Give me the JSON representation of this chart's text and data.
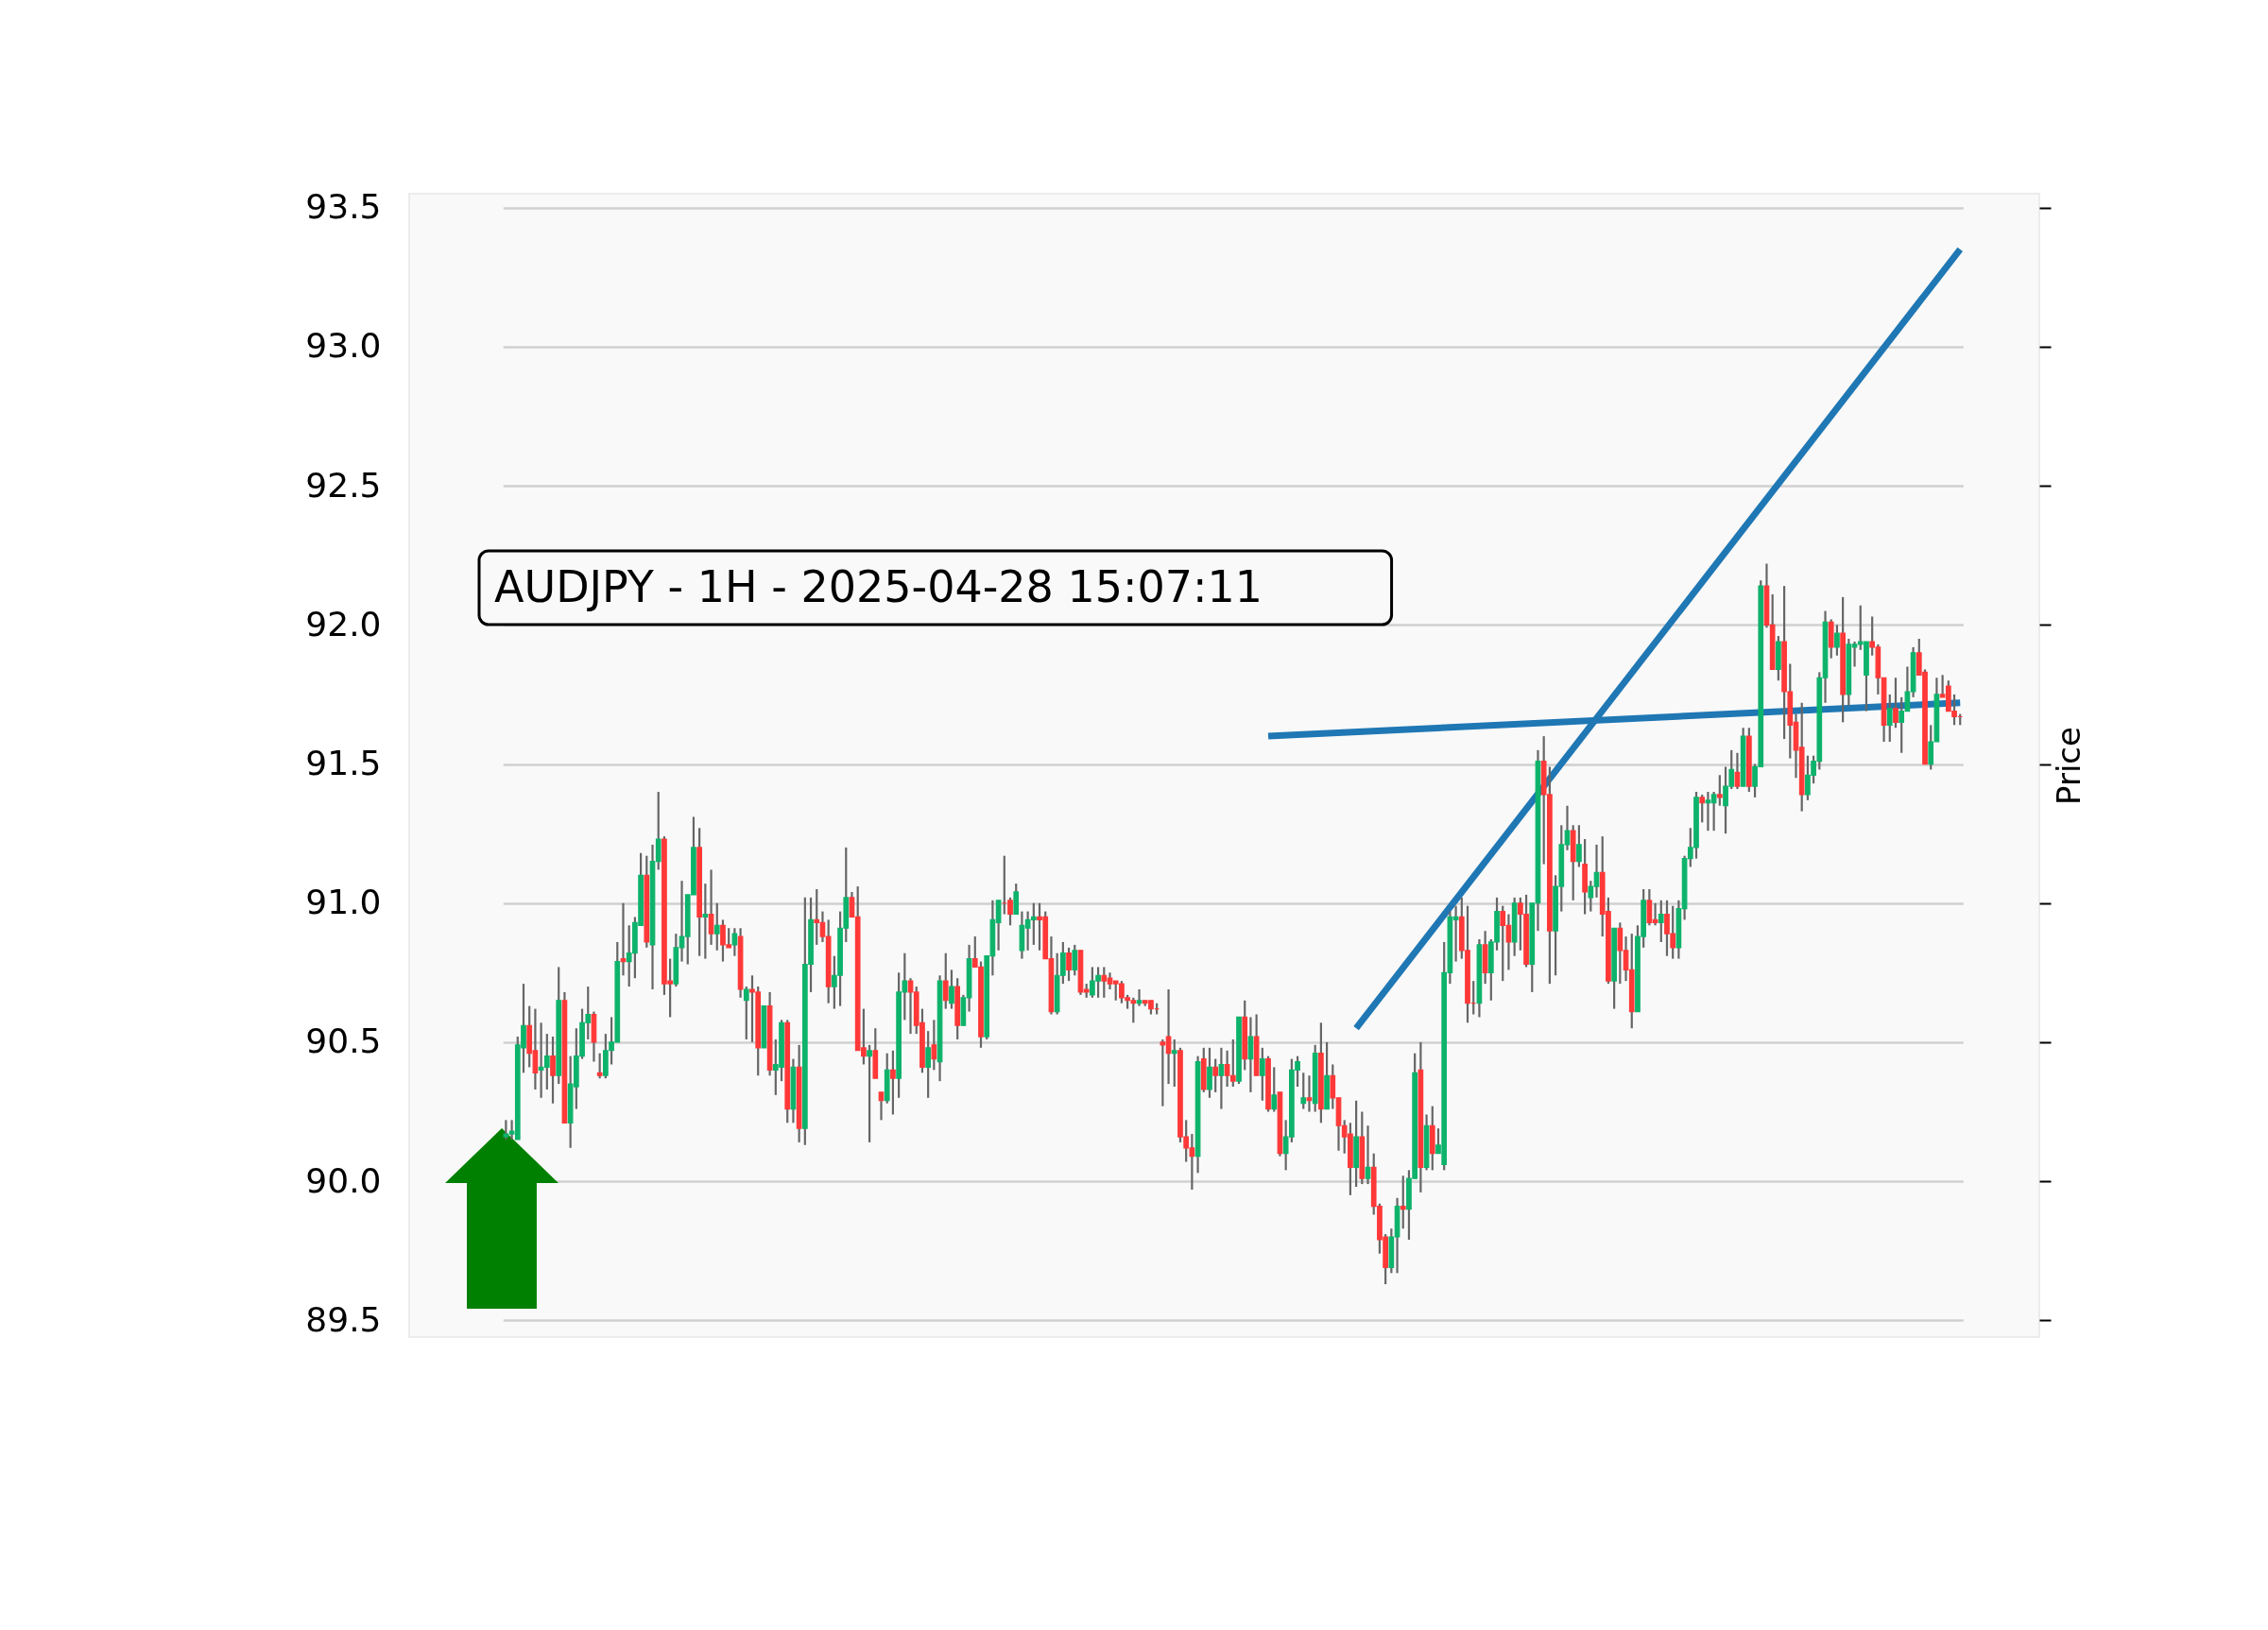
{
  "chart_data": {
    "type": "candlestick",
    "title": "AUDJPY - 1H - 2025-04-28 15:07:11",
    "ylabel": "Price",
    "ylim": [
      89.44,
      93.55
    ],
    "yticks": [
      89.5,
      {
        "value": 90,
        "label": "90.0"
      },
      90.5,
      {
        "value": 91,
        "label": "91.0"
      },
      91.5,
      {
        "value": 92,
        "label": "92.0"
      },
      92.5,
      {
        "value": 93,
        "label": "93.0"
      },
      93.5
    ],
    "grid": "y",
    "tick_labels": "y",
    "categories": [
      null,
      null,
      null,
      null,
      null,
      null,
      null,
      null,
      null,
      null,
      null,
      null,
      null,
      null,
      null,
      null,
      null,
      null,
      null,
      null,
      null,
      null,
      null,
      null,
      null,
      null,
      null,
      null,
      null,
      null,
      null,
      null,
      null,
      null,
      null,
      null,
      null,
      null,
      null,
      null,
      null,
      null,
      null,
      null,
      null,
      null,
      null,
      null,
      null,
      null,
      null,
      null,
      null,
      null,
      null,
      null,
      null,
      null,
      null,
      null,
      null,
      null,
      null,
      null,
      null,
      null,
      null,
      null,
      null,
      null,
      null,
      null,
      null,
      null,
      null,
      null,
      null,
      null,
      null,
      null,
      null,
      null,
      null,
      null,
      null,
      null,
      null,
      null,
      null,
      null,
      null,
      null,
      null,
      null,
      null,
      null,
      null,
      null,
      null,
      null,
      null,
      null,
      null,
      null,
      null,
      null,
      null,
      null,
      null,
      null,
      null,
      null,
      null,
      null,
      null,
      null,
      null,
      null,
      null,
      null,
      null,
      null,
      null,
      null,
      null,
      null,
      null,
      null,
      null,
      null,
      null,
      null,
      null,
      null,
      null,
      null,
      null,
      null,
      null,
      null,
      null,
      null,
      null,
      null,
      null,
      null,
      null,
      null,
      null,
      null,
      null,
      null,
      null,
      null,
      null,
      null,
      null,
      null,
      null,
      null,
      null,
      null,
      null,
      null,
      null,
      null,
      null,
      null,
      null,
      null,
      null,
      null,
      null,
      null,
      null,
      null,
      null,
      null,
      null,
      null,
      null,
      null,
      null,
      null,
      null,
      null,
      null,
      null,
      null,
      null,
      null,
      null,
      null,
      null,
      null,
      null,
      null,
      null,
      null,
      null,
      null,
      null,
      null,
      null,
      null,
      null,
      null,
      null,
      null,
      null,
      null,
      null,
      null,
      null,
      null,
      null,
      null,
      null,
      null,
      null,
      null,
      null,
      null,
      null,
      null,
      null,
      null,
      null,
      null,
      null,
      null,
      null,
      null,
      null,
      null,
      null,
      null,
      null,
      null,
      null,
      null,
      null,
      null,
      null,
      null,
      null,
      null,
      null,
      null
    ],
    "ohlc": [
      [
        90.16,
        90.22,
        90.15,
        90.17
      ],
      [
        90.17,
        90.22,
        90.15,
        90.18
      ],
      [
        90.15,
        90.52,
        90.15,
        90.49
      ],
      [
        90.48,
        90.71,
        90.39,
        90.56
      ],
      [
        90.56,
        90.63,
        90.41,
        90.46
      ],
      [
        90.47,
        90.62,
        90.33,
        90.39
      ],
      [
        90.4,
        90.57,
        90.3,
        90.41
      ],
      [
        90.41,
        90.53,
        90.33,
        90.45
      ],
      [
        90.45,
        90.52,
        90.28,
        90.38
      ],
      [
        90.38,
        90.77,
        90.35,
        90.65
      ],
      [
        90.65,
        90.68,
        90.21,
        90.21
      ],
      [
        90.21,
        90.45,
        90.12,
        90.35
      ],
      [
        90.34,
        90.55,
        90.26,
        90.45
      ],
      [
        90.45,
        90.62,
        90.44,
        90.57
      ],
      [
        90.57,
        90.7,
        90.51,
        90.6
      ],
      [
        90.6,
        90.61,
        90.43,
        90.5
      ],
      [
        90.39,
        90.46,
        90.37,
        90.38
      ],
      [
        90.38,
        90.53,
        90.37,
        90.47
      ],
      [
        90.47,
        90.59,
        90.42,
        90.5
      ],
      [
        90.5,
        90.86,
        90.5,
        90.79
      ],
      [
        90.8,
        91.0,
        90.74,
        90.79
      ],
      [
        90.79,
        90.92,
        90.7,
        90.82
      ],
      [
        90.82,
        90.95,
        90.73,
        90.93
      ],
      [
        90.92,
        91.18,
        90.92,
        91.1
      ],
      [
        91.1,
        91.17,
        90.84,
        90.86
      ],
      [
        90.85,
        91.21,
        90.69,
        91.15
      ],
      [
        91.15,
        91.4,
        91.12,
        91.23
      ],
      [
        91.23,
        91.24,
        90.67,
        90.71
      ],
      [
        90.72,
        90.8,
        90.59,
        90.71
      ],
      [
        90.71,
        90.89,
        90.7,
        90.84
      ],
      [
        90.84,
        91.08,
        90.79,
        90.88
      ],
      [
        90.88,
        91.03,
        90.78,
        91.03
      ],
      [
        91.03,
        91.31,
        91.03,
        91.2
      ],
      [
        91.2,
        91.27,
        90.81,
        90.95
      ],
      [
        90.95,
        91.07,
        90.8,
        90.96
      ],
      [
        90.96,
        91.12,
        90.85,
        90.89
      ],
      [
        90.89,
        91.0,
        90.83,
        90.92
      ],
      [
        90.92,
        90.94,
        90.79,
        90.85
      ],
      [
        90.85,
        90.91,
        90.84,
        90.84
      ],
      [
        90.85,
        90.91,
        90.81,
        90.89
      ],
      [
        90.88,
        90.91,
        90.66,
        90.69
      ],
      [
        90.65,
        90.7,
        90.51,
        90.69
      ],
      [
        90.69,
        90.74,
        90.5,
        90.68
      ],
      [
        90.68,
        90.7,
        90.38,
        90.48
      ],
      [
        90.48,
        90.63,
        90.48,
        90.63
      ],
      [
        90.63,
        90.68,
        90.38,
        90.4
      ],
      [
        90.4,
        90.51,
        90.31,
        90.42
      ],
      [
        90.41,
        90.58,
        90.36,
        90.57
      ],
      [
        90.57,
        90.58,
        90.21,
        90.26
      ],
      [
        90.26,
        90.44,
        90.21,
        90.41
      ],
      [
        90.41,
        90.49,
        90.14,
        90.19
      ],
      [
        90.19,
        91.02,
        90.13,
        90.78
      ],
      [
        90.78,
        91.02,
        90.68,
        90.94
      ],
      [
        90.94,
        91.05,
        90.85,
        90.93
      ],
      [
        90.93,
        90.97,
        90.86,
        90.88
      ],
      [
        90.88,
        90.94,
        90.64,
        90.7
      ],
      [
        90.7,
        90.81,
        90.62,
        90.74
      ],
      [
        90.74,
        90.97,
        90.63,
        90.91
      ],
      [
        90.91,
        91.2,
        90.86,
        91.02
      ],
      [
        91.02,
        91.04,
        90.95,
        90.95
      ],
      [
        90.95,
        91.06,
        90.47,
        90.47
      ],
      [
        90.48,
        90.62,
        90.42,
        90.45
      ],
      [
        90.45,
        90.49,
        90.14,
        90.47
      ],
      [
        90.47,
        90.55,
        90.37,
        90.37
      ],
      [
        90.32,
        90.32,
        90.22,
        90.29
      ],
      [
        90.29,
        90.46,
        90.28,
        90.4
      ],
      [
        90.4,
        90.47,
        90.24,
        90.37
      ],
      [
        90.37,
        90.75,
        90.3,
        90.68
      ],
      [
        90.68,
        90.82,
        90.58,
        90.72
      ],
      [
        90.72,
        90.73,
        90.53,
        90.68
      ],
      [
        90.68,
        90.7,
        90.53,
        90.56
      ],
      [
        90.57,
        90.62,
        90.39,
        90.41
      ],
      [
        90.41,
        90.54,
        90.3,
        90.48
      ],
      [
        90.49,
        90.58,
        90.4,
        90.44
      ],
      [
        90.43,
        90.74,
        90.36,
        90.72
      ],
      [
        90.72,
        90.82,
        90.62,
        90.65
      ],
      [
        90.64,
        90.76,
        90.62,
        90.7
      ],
      [
        90.7,
        90.73,
        90.51,
        90.56
      ],
      [
        90.56,
        90.67,
        90.56,
        90.66
      ],
      [
        90.66,
        90.85,
        90.61,
        90.8
      ],
      [
        90.8,
        90.88,
        90.77,
        90.77
      ],
      [
        90.77,
        90.79,
        90.48,
        90.52
      ],
      [
        90.52,
        90.81,
        90.51,
        90.81
      ],
      [
        90.81,
        91.01,
        90.74,
        90.94
      ],
      [
        90.93,
        91.01,
        90.83,
        91.01
      ],
      [
        91.0,
        91.17,
        90.96,
        91.0
      ],
      [
        91.01,
        91.02,
        90.92,
        90.96
      ],
      [
        90.96,
        91.07,
        90.96,
        91.04
      ],
      [
        90.83,
        90.97,
        90.8,
        90.92
      ],
      [
        90.91,
        90.97,
        90.83,
        90.94
      ],
      [
        90.94,
        91.0,
        90.85,
        90.95
      ],
      [
        90.95,
        91.0,
        90.83,
        90.94
      ],
      [
        90.95,
        90.97,
        90.8,
        90.8
      ],
      [
        90.8,
        90.88,
        90.6,
        90.61
      ],
      [
        90.61,
        90.82,
        90.6,
        90.74
      ],
      [
        90.74,
        90.86,
        90.71,
        90.82
      ],
      [
        90.82,
        90.84,
        90.72,
        90.76
      ],
      [
        90.76,
        90.85,
        90.74,
        90.83
      ],
      [
        90.83,
        90.83,
        90.67,
        90.68
      ],
      [
        90.69,
        90.71,
        90.66,
        90.68
      ],
      [
        90.67,
        90.77,
        90.66,
        90.72
      ],
      [
        90.72,
        90.77,
        90.66,
        90.74
      ],
      [
        90.74,
        90.77,
        90.66,
        90.72
      ],
      [
        90.73,
        90.75,
        90.69,
        90.71
      ],
      [
        90.72,
        90.72,
        90.65,
        90.71
      ],
      [
        90.71,
        90.72,
        90.64,
        90.66
      ],
      [
        90.66,
        90.67,
        90.62,
        90.65
      ],
      [
        90.65,
        90.66,
        90.57,
        90.64
      ],
      [
        90.64,
        90.69,
        90.63,
        90.65
      ],
      [
        90.65,
        90.65,
        90.63,
        90.64
      ],
      [
        90.65,
        90.65,
        90.6,
        90.62
      ],
      [
        90.62,
        90.64,
        90.6,
        90.62
      ],
      [
        90.5,
        90.51,
        90.27,
        90.49
      ],
      [
        90.52,
        90.69,
        90.35,
        90.46
      ],
      [
        90.46,
        90.51,
        90.34,
        90.47
      ],
      [
        90.47,
        90.48,
        90.14,
        90.16
      ],
      [
        90.16,
        90.22,
        90.07,
        90.12
      ],
      [
        90.12,
        90.17,
        89.97,
        90.09
      ],
      [
        90.09,
        90.45,
        90.03,
        90.43
      ],
      [
        90.44,
        90.48,
        90.32,
        90.33
      ],
      [
        90.33,
        90.48,
        90.3,
        90.41
      ],
      [
        90.41,
        90.44,
        90.32,
        90.38
      ],
      [
        90.38,
        90.48,
        90.26,
        90.42
      ],
      [
        90.42,
        90.47,
        90.34,
        90.38
      ],
      [
        90.38,
        90.51,
        90.34,
        90.36
      ],
      [
        90.36,
        90.59,
        90.35,
        90.59
      ],
      [
        90.59,
        90.65,
        90.4,
        90.44
      ],
      [
        90.44,
        90.59,
        90.32,
        90.52
      ],
      [
        90.52,
        90.6,
        90.38,
        90.38
      ],
      [
        90.38,
        90.48,
        90.29,
        90.44
      ],
      [
        90.44,
        90.45,
        90.25,
        90.26
      ],
      [
        90.26,
        90.41,
        90.25,
        90.31
      ],
      [
        90.32,
        90.32,
        90.09,
        90.1
      ],
      [
        90.1,
        90.22,
        90.04,
        90.16
      ],
      [
        90.16,
        90.44,
        90.14,
        90.4
      ],
      [
        90.4,
        90.45,
        90.34,
        90.43
      ],
      [
        90.28,
        90.39,
        90.26,
        90.3
      ],
      [
        90.3,
        90.38,
        90.25,
        90.29
      ],
      [
        90.28,
        90.49,
        90.25,
        90.46
      ],
      [
        90.46,
        90.57,
        90.21,
        90.26
      ],
      [
        90.26,
        90.5,
        90.26,
        90.38
      ],
      [
        90.38,
        90.42,
        90.26,
        90.3
      ],
      [
        90.3,
        90.3,
        90.11,
        90.2
      ],
      [
        90.2,
        90.22,
        90.1,
        90.16
      ],
      [
        90.17,
        90.21,
        89.95,
        90.05
      ],
      [
        90.05,
        90.29,
        89.98,
        90.16
      ],
      [
        90.16,
        90.25,
        89.99,
        90.01
      ],
      [
        90.01,
        90.2,
        89.99,
        90.05
      ],
      [
        90.05,
        90.1,
        89.88,
        89.91
      ],
      [
        89.91,
        89.92,
        89.74,
        89.79
      ],
      [
        89.8,
        89.81,
        89.63,
        89.69
      ],
      [
        89.69,
        89.83,
        89.67,
        89.8
      ],
      [
        89.8,
        89.94,
        89.67,
        89.91
      ],
      [
        89.91,
        90.02,
        89.83,
        89.9
      ],
      [
        89.9,
        90.04,
        89.79,
        90.01
      ],
      [
        90.01,
        90.46,
        90.01,
        90.39
      ],
      [
        90.4,
        90.5,
        89.96,
        90.05
      ],
      [
        90.05,
        90.24,
        90.04,
        90.2
      ],
      [
        90.2,
        90.27,
        90.04,
        90.1
      ],
      [
        90.1,
        90.19,
        90.1,
        90.13
      ],
      [
        90.06,
        90.86,
        90.04,
        90.75
      ],
      [
        90.75,
        90.97,
        90.71,
        90.95
      ],
      [
        90.94,
        90.99,
        90.79,
        90.95
      ],
      [
        90.95,
        91.02,
        90.8,
        90.83
      ],
      [
        90.83,
        90.99,
        90.57,
        90.64
      ],
      [
        90.64,
        90.72,
        90.6,
        90.64
      ],
      [
        90.64,
        90.87,
        90.59,
        90.85
      ],
      [
        90.85,
        90.9,
        90.71,
        90.75
      ],
      [
        90.75,
        90.87,
        90.65,
        90.86
      ],
      [
        90.86,
        91.02,
        90.83,
        90.97
      ],
      [
        90.97,
        90.99,
        90.72,
        90.92
      ],
      [
        90.92,
        90.96,
        90.76,
        90.86
      ],
      [
        90.86,
        91.02,
        90.81,
        91.0
      ],
      [
        91.0,
        91.02,
        90.83,
        90.96
      ],
      [
        90.96,
        91.03,
        90.77,
        90.78
      ],
      [
        90.78,
        91.0,
        90.68,
        91.0
      ],
      [
        91.0,
        91.55,
        90.9,
        91.51
      ],
      [
        91.51,
        91.6,
        91.14,
        91.39
      ],
      [
        91.39,
        91.49,
        90.71,
        90.9
      ],
      [
        90.9,
        91.1,
        90.74,
        91.06
      ],
      [
        91.06,
        91.28,
        90.97,
        91.21
      ],
      [
        91.21,
        91.35,
        91.19,
        91.26
      ],
      [
        91.26,
        91.28,
        91.01,
        91.15
      ],
      [
        91.15,
        91.28,
        91.13,
        91.21
      ],
      [
        91.14,
        91.23,
        90.96,
        91.04
      ],
      [
        91.02,
        91.08,
        90.97,
        91.06
      ],
      [
        91.06,
        91.21,
        91.02,
        91.11
      ],
      [
        91.11,
        91.24,
        90.88,
        90.96
      ],
      [
        90.97,
        91.02,
        90.71,
        90.72
      ],
      [
        90.72,
        90.91,
        90.62,
        90.91
      ],
      [
        90.91,
        90.93,
        90.71,
        90.83
      ],
      [
        90.83,
        90.88,
        90.72,
        90.76
      ],
      [
        90.76,
        90.89,
        90.55,
        90.61
      ],
      [
        90.61,
        90.92,
        90.61,
        90.88
      ],
      [
        90.88,
        91.05,
        90.84,
        91.01
      ],
      [
        91.01,
        91.05,
        90.92,
        90.93
      ],
      [
        90.94,
        91.0,
        90.92,
        90.93
      ],
      [
        90.93,
        91.01,
        90.86,
        90.96
      ],
      [
        90.96,
        91.01,
        90.81,
        90.89
      ],
      [
        90.89,
        90.99,
        90.8,
        90.84
      ],
      [
        90.84,
        91.01,
        90.8,
        90.98
      ],
      [
        90.98,
        91.17,
        90.94,
        91.16
      ],
      [
        91.16,
        91.27,
        91.13,
        91.2
      ],
      [
        91.2,
        91.4,
        91.16,
        91.38
      ],
      [
        91.38,
        91.39,
        91.29,
        91.36
      ],
      [
        91.36,
        91.4,
        91.26,
        91.37
      ],
      [
        91.36,
        91.4,
        91.26,
        91.39
      ],
      [
        91.39,
        91.46,
        91.35,
        91.38
      ],
      [
        91.35,
        91.49,
        91.25,
        91.42
      ],
      [
        91.42,
        91.55,
        91.41,
        91.48
      ],
      [
        91.47,
        91.54,
        91.41,
        91.42
      ],
      [
        91.42,
        91.63,
        91.42,
        91.6
      ],
      [
        91.6,
        91.63,
        91.4,
        91.42
      ],
      [
        91.42,
        91.5,
        91.38,
        91.49
      ],
      [
        91.49,
        92.16,
        91.49,
        92.14
      ],
      [
        92.14,
        92.22,
        91.99,
        92.0
      ],
      [
        92.0,
        92.11,
        91.84,
        91.84
      ],
      [
        91.84,
        91.96,
        91.8,
        91.94
      ],
      [
        91.94,
        92.14,
        91.59,
        91.76
      ],
      [
        91.76,
        91.86,
        91.52,
        91.64
      ],
      [
        91.65,
        91.68,
        91.45,
        91.55
      ],
      [
        91.56,
        91.72,
        91.33,
        91.39
      ],
      [
        91.39,
        91.53,
        91.37,
        91.46
      ],
      [
        91.46,
        91.53,
        91.43,
        91.51
      ],
      [
        91.51,
        91.83,
        91.48,
        91.81
      ],
      [
        91.81,
        92.05,
        91.72,
        92.01
      ],
      [
        92.01,
        92.02,
        91.88,
        91.92
      ],
      [
        91.92,
        92.0,
        91.89,
        91.97
      ],
      [
        91.97,
        92.1,
        91.65,
        91.75
      ],
      [
        91.75,
        91.95,
        91.71,
        91.93
      ],
      [
        91.92,
        91.94,
        91.85,
        91.93
      ],
      [
        91.93,
        92.07,
        91.91,
        91.94
      ],
      [
        91.82,
        91.94,
        91.69,
        91.94
      ],
      [
        91.94,
        92.03,
        91.89,
        91.92
      ],
      [
        91.92,
        91.93,
        91.75,
        91.81
      ],
      [
        91.81,
        91.81,
        91.58,
        91.64
      ],
      [
        91.64,
        91.75,
        91.58,
        91.7
      ],
      [
        91.7,
        91.81,
        91.63,
        91.65
      ],
      [
        91.65,
        91.74,
        91.54,
        91.69
      ],
      [
        91.69,
        91.85,
        91.69,
        91.76
      ],
      [
        91.76,
        91.92,
        91.74,
        91.9
      ],
      [
        91.9,
        91.95,
        91.82,
        91.82
      ],
      [
        91.83,
        91.84,
        91.5,
        91.5
      ],
      [
        91.5,
        91.64,
        91.48,
        91.58
      ],
      [
        91.58,
        91.81,
        91.58,
        91.75
      ],
      [
        91.75,
        91.82,
        91.74,
        91.74
      ],
      [
        91.78,
        91.8,
        91.69,
        91.69
      ],
      [
        91.69,
        91.75,
        91.64,
        91.67
      ],
      [
        91.67,
        91.68,
        91.64,
        91.67
      ]
    ],
    "series": [
      {
        "type": "line",
        "color": "#1f77b4",
        "values": [
          null,
          null,
          null,
          null,
          null,
          null,
          null,
          null,
          null,
          null,
          null,
          null,
          null,
          null,
          null,
          null,
          null,
          null,
          null,
          null,
          null,
          null,
          null,
          null,
          null,
          null,
          null,
          null,
          null,
          null,
          null,
          null,
          null,
          null,
          null,
          null,
          null,
          null,
          null,
          null,
          null,
          null,
          null,
          null,
          null,
          null,
          null,
          null,
          null,
          null,
          null,
          null,
          null,
          null,
          null,
          null,
          null,
          null,
          null,
          null,
          null,
          null,
          null,
          null,
          null,
          null,
          null,
          null,
          null,
          null,
          null,
          null,
          null,
          null,
          null,
          null,
          null,
          null,
          null,
          null,
          null,
          null,
          null,
          null,
          null,
          null,
          null,
          null,
          null,
          null,
          null,
          null,
          null,
          null,
          null,
          null,
          null,
          null,
          null,
          null,
          null,
          null,
          null,
          null,
          null,
          null,
          null,
          null,
          null,
          null,
          null,
          null,
          null,
          null,
          null,
          null,
          null,
          null,
          null,
          null,
          null,
          null,
          null,
          null,
          null,
          null,
          null,
          null,
          null,
          null,
          null,
          null,
          null,
          null,
          null,
          null,
          null,
          null,
          null,
          null,
          null,
          null,
          null,
          null,
          null,
          90.55,
          null,
          null,
          null,
          null,
          null,
          null,
          null,
          null,
          null,
          null,
          null,
          null,
          null,
          null,
          null,
          null,
          null,
          null,
          null,
          null,
          null,
          null,
          null,
          null,
          null,
          null,
          null,
          null,
          null,
          null,
          null,
          null,
          null,
          null,
          null,
          null,
          null,
          null,
          null,
          null,
          null,
          null,
          null,
          null,
          null,
          null,
          null,
          null,
          null,
          null,
          null,
          null,
          null,
          null,
          null,
          null,
          null,
          null,
          null,
          null,
          null,
          null,
          null,
          null,
          null,
          null,
          null,
          null,
          null,
          null,
          null,
          null,
          null,
          null,
          null,
          null,
          null,
          null,
          null,
          null,
          null,
          null,
          null,
          null,
          null,
          null,
          null,
          null,
          null,
          null,
          null,
          null,
          null,
          null,
          null,
          null,
          null,
          null,
          null,
          null,
          null,
          null,
          93.35
        ]
      },
      {
        "type": "line",
        "color": "#1f77b4",
        "values": [
          null,
          null,
          null,
          null,
          null,
          null,
          null,
          null,
          null,
          null,
          null,
          null,
          null,
          null,
          null,
          null,
          null,
          null,
          null,
          null,
          null,
          null,
          null,
          null,
          null,
          null,
          null,
          null,
          null,
          null,
          null,
          null,
          null,
          null,
          null,
          null,
          null,
          null,
          null,
          null,
          null,
          null,
          null,
          null,
          null,
          null,
          null,
          null,
          null,
          null,
          null,
          null,
          null,
          null,
          null,
          null,
          null,
          null,
          null,
          null,
          null,
          null,
          null,
          null,
          null,
          null,
          null,
          null,
          null,
          null,
          null,
          null,
          null,
          null,
          null,
          null,
          null,
          null,
          null,
          null,
          null,
          null,
          null,
          null,
          null,
          null,
          null,
          null,
          null,
          null,
          null,
          null,
          null,
          null,
          null,
          null,
          null,
          null,
          null,
          null,
          null,
          null,
          null,
          null,
          null,
          null,
          null,
          null,
          null,
          null,
          null,
          null,
          null,
          null,
          null,
          null,
          null,
          null,
          null,
          null,
          null,
          null,
          null,
          null,
          null,
          null,
          null,
          null,
          null,
          null,
          91.6,
          null,
          null,
          null,
          null,
          null,
          null,
          null,
          null,
          null,
          null,
          null,
          null,
          null,
          null,
          null,
          null,
          null,
          null,
          null,
          null,
          null,
          null,
          null,
          null,
          null,
          null,
          null,
          null,
          null,
          null,
          null,
          null,
          null,
          null,
          null,
          null,
          null,
          null,
          null,
          null,
          null,
          null,
          null,
          null,
          null,
          null,
          null,
          null,
          null,
          null,
          null,
          null,
          null,
          null,
          null,
          null,
          null,
          null,
          null,
          null,
          null,
          null,
          null,
          null,
          null,
          null,
          null,
          null,
          null,
          null,
          null,
          null,
          null,
          null,
          null,
          null,
          null,
          null,
          null,
          null,
          null,
          null,
          null,
          null,
          null,
          null,
          null,
          null,
          null,
          null,
          null,
          null,
          null,
          null,
          null,
          null,
          null,
          null,
          null,
          null,
          null,
          null,
          null,
          null,
          null,
          null,
          null,
          null,
          null,
          null,
          null,
          null,
          null,
          null,
          null,
          null,
          null,
          91.72
        ]
      }
    ]
  }
}
